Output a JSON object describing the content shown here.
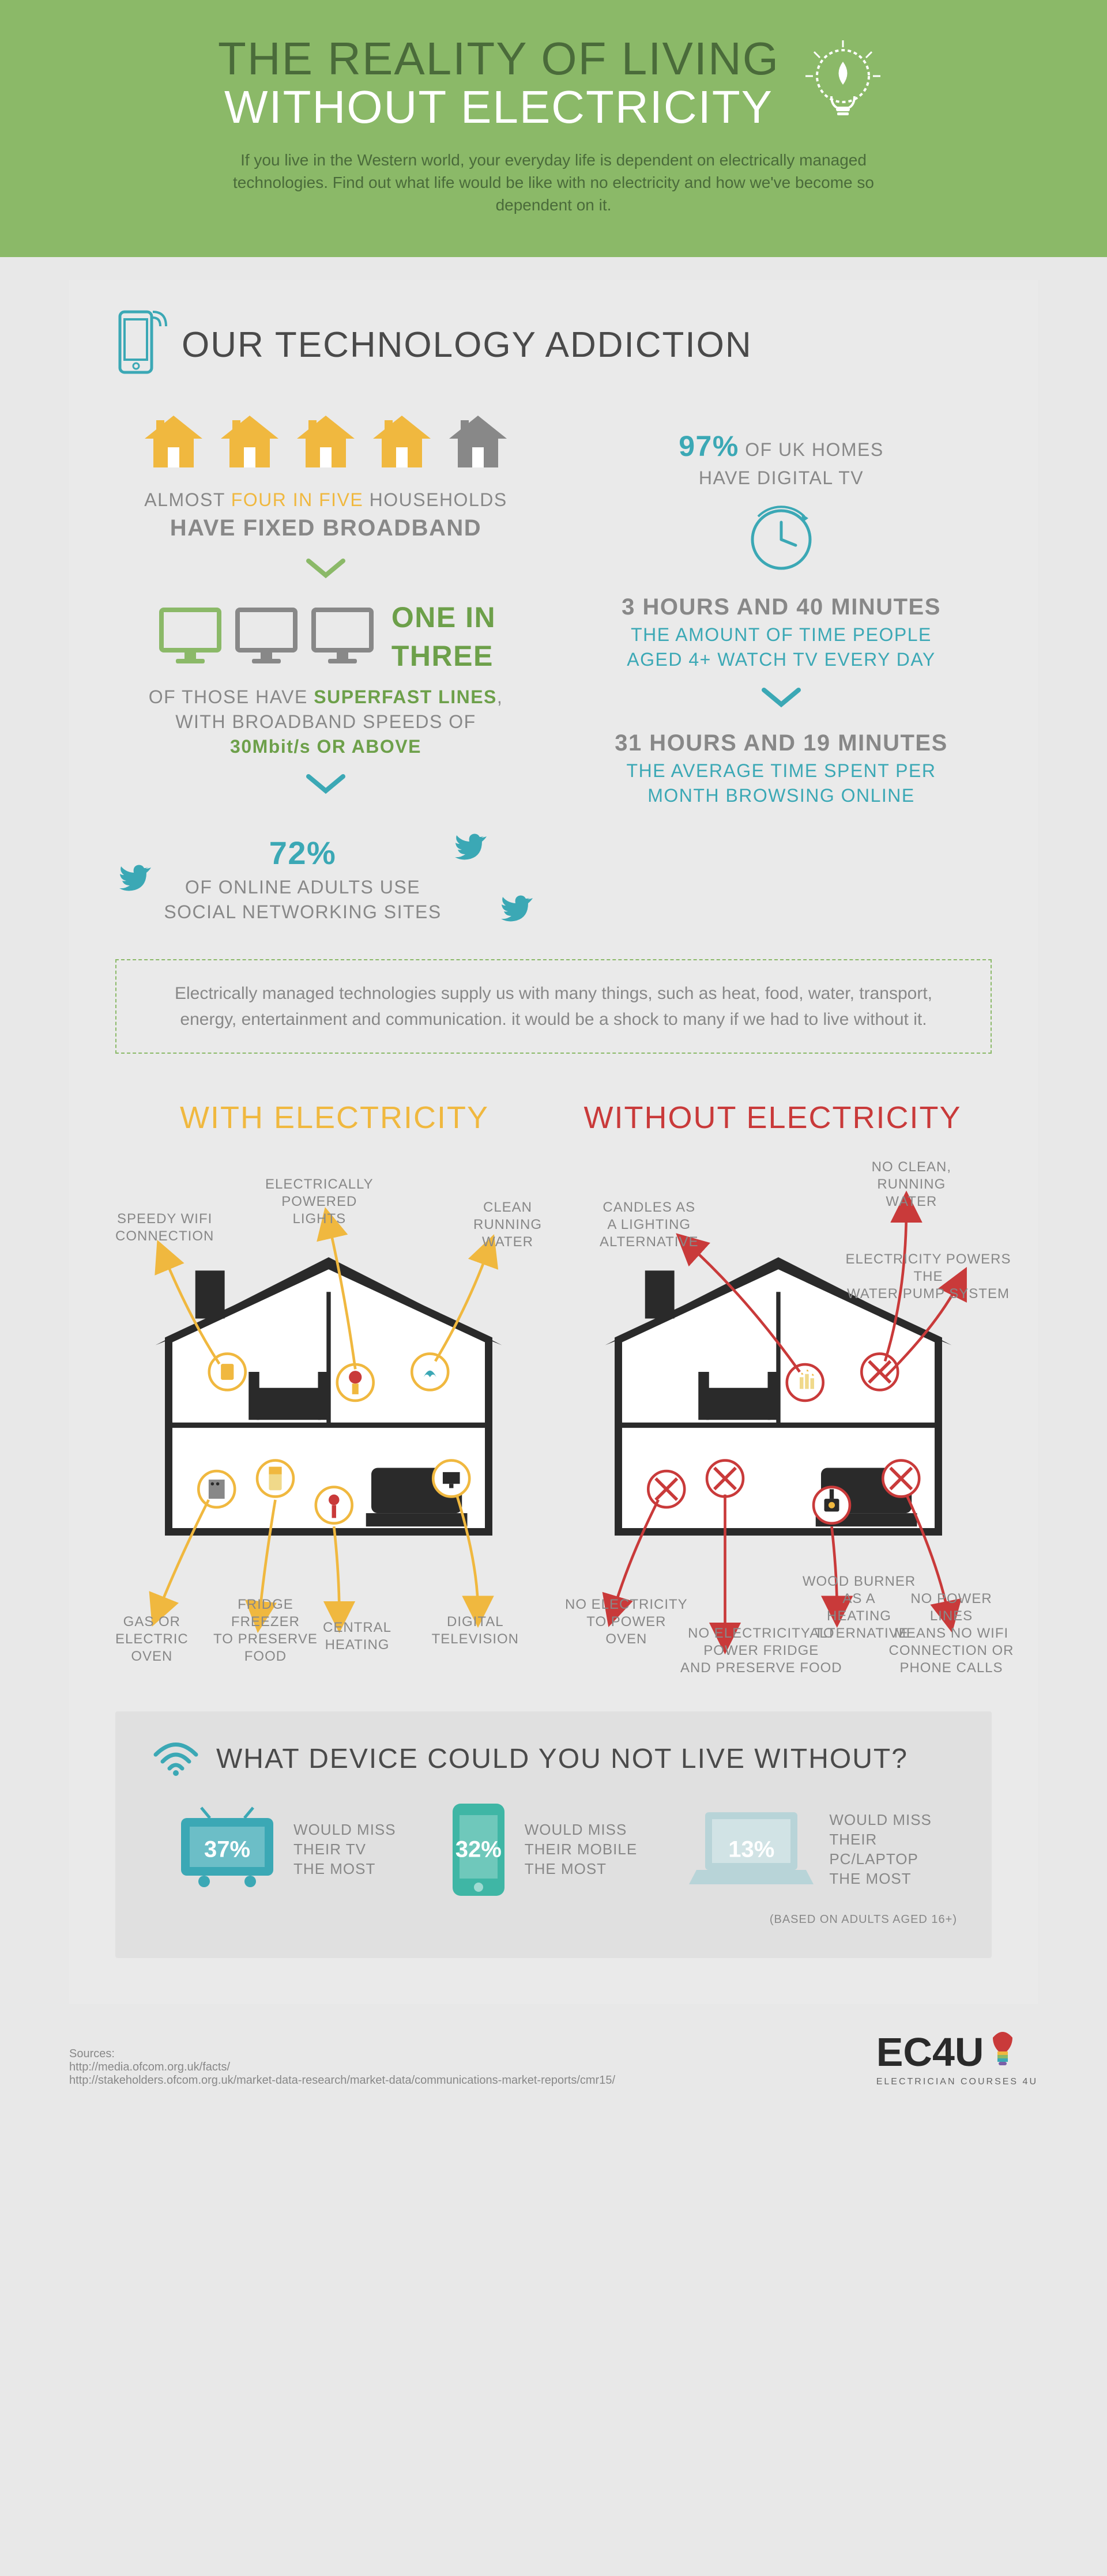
{
  "colors": {
    "header_bg": "#8bb968",
    "header_dark": "#4a6b3a",
    "white": "#ffffff",
    "grey_text": "#888888",
    "green": "#8bb968",
    "green_dark": "#6da04a",
    "teal": "#3ba8b5",
    "yellow": "#f0b83f",
    "red": "#c93a3a",
    "dev_blue": "#3ba8b5",
    "dev_teal": "#3fb6a5",
    "dev_light": "#b8d4d8"
  },
  "header": {
    "title_line1": "THE REALITY OF LIVING",
    "title_line2": "WITHOUT ELECTRICITY",
    "subtitle": "If you live in the Western world, your everyday life is dependent on electrically managed technologies. Find out what life would be like with no electricity and how we've become so dependent on it."
  },
  "section1": {
    "title": "OUR TECHNOLOGY ADDICTION",
    "houses": {
      "count": 5,
      "filled": 4,
      "filled_color": "#f0b83f",
      "empty_color": "#888888"
    },
    "broadband_almost": "ALMOST ",
    "broadband_fourinfive": "FOUR IN FIVE",
    "broadband_households": " HOUSEHOLDS",
    "broadband_have": "HAVE FIXED BROADBAND",
    "monitors": {
      "count": 3,
      "filled": 1,
      "filled_color": "#8bb968",
      "empty_color": "#888888"
    },
    "superfast_onein": "ONE IN",
    "superfast_three": "THREE",
    "superfast_rest1": "OF THOSE HAVE ",
    "superfast_rest1b": "SUPERFAST LINES",
    "superfast_rest1c": ",",
    "superfast_rest2": "WITH BROADBAND SPEEDS OF",
    "superfast_rest3": "30Mbit/s OR ABOVE",
    "twitter_pct": "72%",
    "twitter_rest1": "OF ONLINE ADULTS USE",
    "twitter_rest2": "SOCIAL NETWORKING SITES",
    "uk_pct": "97%",
    "uk_rest": " OF UK HOMES",
    "uk_line2": "HAVE DIGITAL TV",
    "tvtime_val": "3 HOURS AND 40 MINUTES",
    "tvtime_rest1": "THE AMOUNT OF TIME PEOPLE",
    "tvtime_rest2": "AGED 4+ WATCH TV EVERY DAY",
    "browse_val": "31 HOURS AND 19 MINUTES",
    "browse_rest1": "THE AVERAGE TIME SPENT PER",
    "browse_rest2": "MONTH BROWSING ONLINE",
    "callout": "Electrically managed technologies supply us with many things, such as heat, food, water, transport, energy, entertainment and communication. it would be a shock to many if we had to live without it."
  },
  "section2": {
    "with_title": "WITH ELECTRICITY",
    "without_title": "WITHOUT ELECTRICITY",
    "with_labels": {
      "wifi": "SPEEDY WIFI\nCONNECTION",
      "lights": "ELECTRICALLY\nPOWERED\nLIGHTS",
      "water": "CLEAN\nRUNNING\nWATER",
      "oven": "GAS OR\nELECTRIC\nOVEN",
      "fridge": "FRIDGE\nFREEZER\nTO PRESERVE\nFOOD",
      "heating": "CENTRAL\nHEATING",
      "tv": "DIGITAL\nTELEVISION"
    },
    "without_labels": {
      "candles": "CANDLES AS\nA LIGHTING\nALTERNATIVE",
      "nowater": "NO CLEAN,\nRUNNING\nWATER",
      "pump": "ELECTRICITY POWERS THE\nWATER PUMP SYSTEM",
      "nooven": "NO ELECTRICITY\nTO POWER\nOVEN",
      "wood": "WOOD BURNER AS A\nHEATING ALTERNATIVE",
      "nofridge": "NO ELECTRICITY TO\nPOWER FRIDGE\nAND PRESERVE FOOD",
      "nowifi": "NO POWER LINES\nMEANS NO WIFI\nCONNECTION OR\nPHONE CALLS"
    }
  },
  "section3": {
    "title": "WHAT DEVICE COULD YOU NOT LIVE WITHOUT?",
    "devices": [
      {
        "pct": "37%",
        "text": "WOULD MISS\nTHEIR TV\nTHE MOST",
        "color": "#3ba8b5",
        "kind": "tv"
      },
      {
        "pct": "32%",
        "text": "WOULD MISS\nTHEIR MOBILE\nTHE MOST",
        "color": "#3fb6a5",
        "kind": "phone"
      },
      {
        "pct": "13%",
        "text": "WOULD MISS\nTHEIR\nPC/LAPTOP\nTHE MOST",
        "color": "#b8d4d8",
        "kind": "laptop"
      }
    ],
    "note": "(BASED ON ADULTS AGED 16+)"
  },
  "footer": {
    "sources_label": "Sources:",
    "source1": "http://media.ofcom.org.uk/facts/",
    "source2": "http://stakeholders.ofcom.org.uk/market-data-research/market-data/communications-market-reports/cmr15/",
    "logo": "EC4U",
    "logo_sub": "ELECTRICIAN COURSES 4U"
  }
}
